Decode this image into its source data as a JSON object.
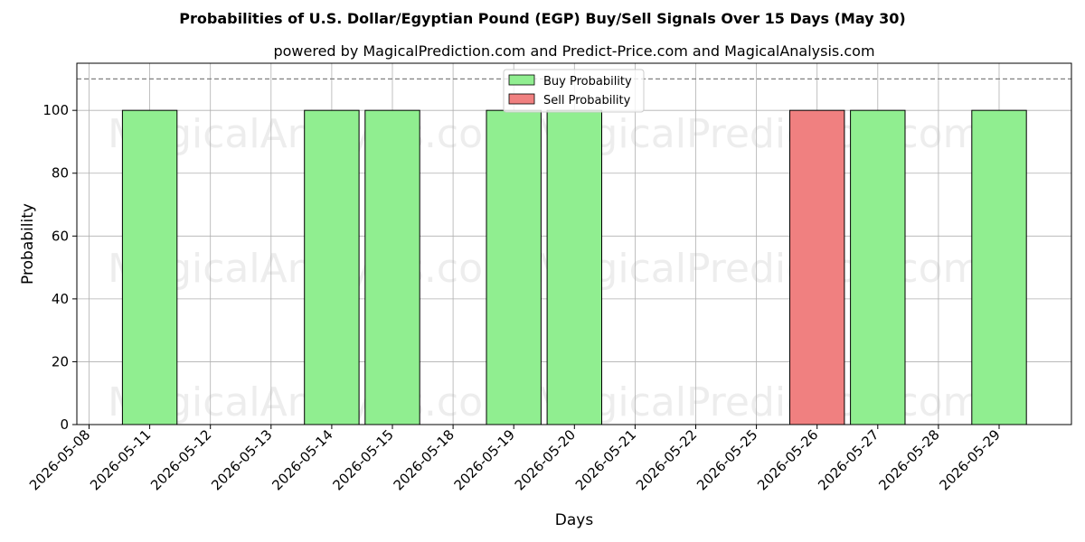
{
  "title": "Probabilities of U.S. Dollar/Egyptian Pound (EGP) Buy/Sell Signals Over 15 Days (May 30)",
  "subtitle": "powered by MagicalPrediction.com and Predict-Price.com and MagicalAnalysis.com",
  "watermarks": [
    "MagicalAnalysis.com",
    "MagicalPrediction.com"
  ],
  "colors": {
    "buy": "#90ee90",
    "sell": "#f08080",
    "edge": "#000000",
    "grid": "#b0b0b0",
    "ref_line": "#808080"
  },
  "chart_data": {
    "type": "bar",
    "xlabel": "Days",
    "ylabel": "Probability",
    "ylim": [
      0,
      115
    ],
    "yticks": [
      0,
      20,
      40,
      60,
      80,
      100
    ],
    "reference_line": 110,
    "grid": true,
    "legend_position": "top-center",
    "categories": [
      "2026-05-08",
      "2026-05-11",
      "2026-05-12",
      "2026-05-13",
      "2026-05-14",
      "2026-05-15",
      "2026-05-18",
      "2026-05-19",
      "2026-05-20",
      "2026-05-21",
      "2026-05-22",
      "2026-05-25",
      "2026-05-26",
      "2026-05-27",
      "2026-05-28",
      "2026-05-29"
    ],
    "series": [
      {
        "name": "Buy Probability",
        "values": [
          0,
          100,
          0,
          0,
          100,
          100,
          0,
          100,
          100,
          0,
          0,
          0,
          0,
          100,
          0,
          100
        ]
      },
      {
        "name": "Sell Probability",
        "values": [
          0,
          0,
          0,
          0,
          0,
          0,
          0,
          0,
          0,
          0,
          0,
          0,
          100,
          0,
          0,
          0
        ]
      }
    ]
  }
}
